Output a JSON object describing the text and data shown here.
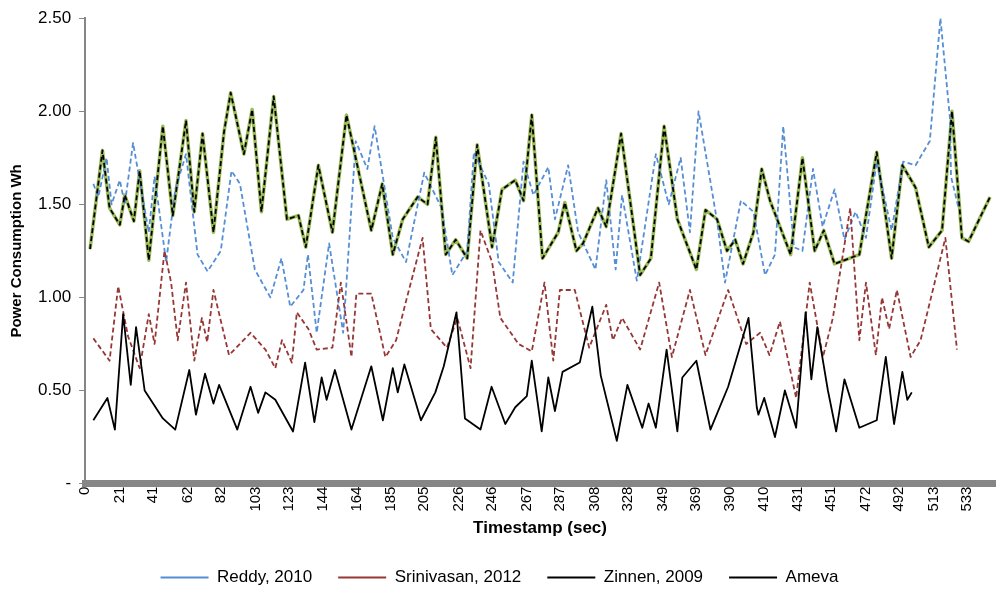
{
  "chart_data": {
    "type": "line",
    "xlabel": "Timestamp (sec)",
    "ylabel": "Power Consumption Wh",
    "xlim": [
      0,
      550
    ],
    "xticks": [
      0,
      21,
      41,
      62,
      82,
      103,
      123,
      144,
      164,
      185,
      205,
      226,
      246,
      267,
      287,
      308,
      328,
      349,
      369,
      390,
      410,
      431,
      451,
      472,
      492,
      513,
      533
    ],
    "ylim": [
      0,
      2.5
    ],
    "yticks": [
      {
        "value": 0,
        "label": "-"
      },
      {
        "value": 0.5,
        "label": "0.50"
      },
      {
        "value": 1,
        "label": "1.00"
      },
      {
        "value": 1.5,
        "label": "1.50"
      },
      {
        "value": 2,
        "label": "2.00"
      },
      {
        "value": 2.5,
        "label": "2.50"
      }
    ],
    "grid": false,
    "legend": "bottom",
    "marker": "none",
    "series": [
      {
        "color": "#9bbb59",
        "line_style": "solid",
        "x": [
          3,
          10.5,
          14.8,
          21,
          24,
          29.5,
          33,
          38.5,
          47,
          53,
          61,
          66,
          71,
          77.6,
          84,
          88,
          96,
          101,
          106.6,
          114,
          122,
          129,
          133.4,
          141,
          149.5,
          158,
          173,
          179.6,
          186,
          192,
          201,
          207,
          212,
          218,
          224,
          231,
          237,
          246,
          252,
          260,
          265,
          270,
          276.5,
          286,
          290,
          297,
          301,
          310,
          315,
          324,
          335.5,
          342,
          350,
          358,
          369.5,
          375,
          382,
          388,
          393,
          397.7,
          404,
          409,
          414,
          426.5,
          433.6,
          441,
          446.5,
          453,
          462,
          468,
          478.5,
          487.5,
          494,
          502,
          510,
          518,
          524,
          530,
          534,
          547
        ],
        "values": [
          1.26,
          1.79,
          1.48,
          1.39,
          1.55,
          1.41,
          1.68,
          1.2,
          1.92,
          1.44,
          1.95,
          1.46,
          1.88,
          1.35,
          1.89,
          2.1,
          1.77,
          2.01,
          1.46,
          2.08,
          1.42,
          1.44,
          1.27,
          1.71,
          1.35,
          1.98,
          1.36,
          1.61,
          1.23,
          1.42,
          1.54,
          1.5,
          1.86,
          1.23,
          1.31,
          1.21,
          1.82,
          1.27,
          1.58,
          1.63,
          1.52,
          1.98,
          1.21,
          1.35,
          1.51,
          1.25,
          1.29,
          1.48,
          1.38,
          1.88,
          1.12,
          1.21,
          1.92,
          1.42,
          1.15,
          1.47,
          1.42,
          1.25,
          1.31,
          1.18,
          1.35,
          1.69,
          1.52,
          1.23,
          1.75,
          1.25,
          1.36,
          1.18,
          1.21,
          1.23,
          1.78,
          1.21,
          1.71,
          1.59,
          1.27,
          1.36,
          2.0,
          1.32,
          1.3,
          1.54
        ]
      },
      {
        "name": "Reddy, 2010",
        "color": "#558ed5",
        "line_style": "dashed",
        "x": [
          5,
          8,
          13,
          16,
          21,
          24,
          29,
          38.5,
          42,
          49,
          54.5,
          61,
          68,
          74,
          82,
          88.5,
          93.6,
          102.6,
          112,
          118.7,
          124,
          132,
          134.7,
          140,
          147.5,
          156,
          163.6,
          170.6,
          175,
          186,
          194,
          205,
          215.5,
          222,
          231,
          235,
          244,
          250,
          258.5,
          265,
          271,
          280,
          284,
          292,
          298,
          308.5,
          315,
          320.7,
          324.6,
          333.5,
          345,
          352.8,
          360,
          365.6,
          370.8,
          382,
          386.8,
          396.4,
          404,
          411,
          417,
          422,
          428.5,
          433.6,
          440,
          445.8,
          453,
          459,
          465.7,
          472,
          478.5,
          487.5,
          494.5,
          502,
          510.6,
          517,
          522.8,
          523.4,
          528
        ],
        "values": [
          1.61,
          1.54,
          1.75,
          1.5,
          1.63,
          1.5,
          1.83,
          1.35,
          1.65,
          1.19,
          1.58,
          1.77,
          1.23,
          1.14,
          1.25,
          1.68,
          1.61,
          1.15,
          1.0,
          1.21,
          0.95,
          1.04,
          1.23,
          0.81,
          1.29,
          0.81,
          1.84,
          1.69,
          1.92,
          1.32,
          1.19,
          1.67,
          1.48,
          1.12,
          1.25,
          1.78,
          1.61,
          1.19,
          1.08,
          1.73,
          1.55,
          1.7,
          1.42,
          1.71,
          1.35,
          1.15,
          1.63,
          1.15,
          1.55,
          1.09,
          1.77,
          1.5,
          1.75,
          1.35,
          2.0,
          1.41,
          1.08,
          1.52,
          1.46,
          1.12,
          1.23,
          1.92,
          1.27,
          1.25,
          1.69,
          1.38,
          1.58,
          1.31,
          1.46,
          1.32,
          1.73,
          1.36,
          1.73,
          1.71,
          1.84,
          2.5,
          1.96,
          1.65,
          1.48
        ]
      },
      {
        "name": "Srinivasan, 2012",
        "color": "#953735",
        "line_style": "dashed",
        "x": [
          5,
          14.8,
          20,
          26,
          33,
          38.5,
          42,
          48,
          52,
          56,
          61,
          66,
          70.6,
          73.8,
          77.6,
          87,
          100,
          109,
          115,
          119,
          125,
          128,
          135,
          140,
          149.5,
          154.6,
          161,
          164,
          173,
          181.5,
          188,
          194,
          204,
          209,
          218.7,
          225,
          233,
          239,
          246,
          251,
          262,
          270,
          277.7,
          283,
          287,
          296,
          304.7,
          315,
          319,
          324.6,
          335.5,
          347,
          354.7,
          365.6,
          375,
          388.7,
          399.6,
          408,
          413.7,
          420,
          429.8,
          438,
          446,
          452,
          462.5,
          468,
          472,
          478,
          481.7,
          486,
          490.7,
          499,
          505,
          513,
          520,
          527
        ],
        "values": [
          0.78,
          0.66,
          1.06,
          0.79,
          0.62,
          0.91,
          0.75,
          1.25,
          1.08,
          0.77,
          1.08,
          0.66,
          0.89,
          0.76,
          1.04,
          0.69,
          0.81,
          0.72,
          0.62,
          0.77,
          0.65,
          0.92,
          0.83,
          0.72,
          0.73,
          1.08,
          0.68,
          1.02,
          1.02,
          0.68,
          0.77,
          0.98,
          1.32,
          0.83,
          0.73,
          0.89,
          0.62,
          1.36,
          1.19,
          0.89,
          0.75,
          0.71,
          1.08,
          0.66,
          1.04,
          1.04,
          0.73,
          0.96,
          0.77,
          0.89,
          0.72,
          1.08,
          0.68,
          1.04,
          0.69,
          1.04,
          0.75,
          0.81,
          0.69,
          0.87,
          0.46,
          1.08,
          0.68,
          0.89,
          1.48,
          0.77,
          1.08,
          0.69,
          1.0,
          0.83,
          1.04,
          0.68,
          0.77,
          1.06,
          1.32,
          0.72
        ]
      },
      {
        "name": "Zinnen, 2009",
        "color": "#000000",
        "line_style": "dashed",
        "x": [
          3,
          10.5,
          14.8,
          21,
          24,
          29.5,
          33,
          38.5,
          47,
          53,
          61,
          66,
          71,
          77.6,
          84,
          88,
          96,
          101,
          106.6,
          114,
          122,
          129,
          133.4,
          141,
          149.5,
          158,
          173,
          179.6,
          186,
          192,
          201,
          207,
          212,
          218,
          224,
          231,
          237,
          246,
          252,
          260,
          265,
          270,
          276.5,
          286,
          290,
          297,
          301,
          310,
          315,
          324,
          335.5,
          342,
          350,
          358,
          369.5,
          375,
          382,
          388,
          393,
          397.7,
          404,
          409,
          414,
          426.5,
          433.6,
          441,
          446.5,
          453,
          462,
          468,
          478.5,
          487.5,
          494,
          502,
          510,
          518,
          524,
          530,
          534,
          547
        ],
        "values": [
          1.26,
          1.79,
          1.48,
          1.39,
          1.55,
          1.41,
          1.68,
          1.2,
          1.92,
          1.44,
          1.95,
          1.46,
          1.88,
          1.35,
          1.89,
          2.1,
          1.77,
          2.01,
          1.46,
          2.08,
          1.42,
          1.44,
          1.27,
          1.71,
          1.35,
          1.98,
          1.36,
          1.61,
          1.23,
          1.42,
          1.54,
          1.5,
          1.86,
          1.23,
          1.31,
          1.21,
          1.82,
          1.27,
          1.58,
          1.63,
          1.52,
          1.98,
          1.21,
          1.35,
          1.51,
          1.25,
          1.29,
          1.48,
          1.38,
          1.88,
          1.12,
          1.21,
          1.92,
          1.42,
          1.15,
          1.47,
          1.42,
          1.25,
          1.31,
          1.18,
          1.35,
          1.69,
          1.52,
          1.23,
          1.75,
          1.25,
          1.36,
          1.18,
          1.21,
          1.23,
          1.78,
          1.21,
          1.71,
          1.59,
          1.27,
          1.36,
          2.0,
          1.32,
          1.3,
          1.54
        ]
      },
      {
        "name": "Ameva",
        "color": "#000000",
        "line_style": "solid",
        "x": [
          5,
          13.5,
          18,
          23,
          27.6,
          30.8,
          36,
          47,
          54.5,
          63,
          67,
          72.5,
          77.6,
          81,
          92,
          100,
          104.6,
          109,
          115,
          125.7,
          133,
          138.6,
          143,
          146,
          151,
          161,
          173,
          180,
          186,
          189,
          193,
          203,
          211.7,
          216.8,
          224.5,
          229.6,
          239,
          245.7,
          254,
          260,
          267,
          270,
          276,
          280,
          284,
          288.6,
          299,
          306.6,
          311.7,
          321.4,
          327.8,
          336.8,
          340.6,
          345,
          351.5,
          358,
          361,
          369.5,
          378,
          388.7,
          401,
          406,
          407,
          410.5,
          417,
          423,
          429.8,
          435.5,
          439,
          442.6,
          449,
          454,
          459,
          468,
          478.5,
          484,
          489,
          494,
          497,
          499.7
        ],
        "values": [
          0.34,
          0.46,
          0.29,
          0.91,
          0.53,
          0.84,
          0.5,
          0.35,
          0.29,
          0.61,
          0.37,
          0.59,
          0.43,
          0.53,
          0.29,
          0.52,
          0.38,
          0.49,
          0.45,
          0.28,
          0.65,
          0.33,
          0.57,
          0.45,
          0.61,
          0.29,
          0.63,
          0.34,
          0.62,
          0.49,
          0.64,
          0.34,
          0.49,
          0.63,
          0.92,
          0.35,
          0.29,
          0.52,
          0.32,
          0.41,
          0.47,
          0.66,
          0.28,
          0.57,
          0.39,
          0.6,
          0.65,
          0.95,
          0.58,
          0.23,
          0.53,
          0.3,
          0.43,
          0.3,
          0.72,
          0.28,
          0.57,
          0.66,
          0.29,
          0.52,
          0.89,
          0.41,
          0.37,
          0.46,
          0.25,
          0.5,
          0.3,
          0.92,
          0.56,
          0.84,
          0.5,
          0.28,
          0.56,
          0.3,
          0.34,
          0.68,
          0.32,
          0.6,
          0.45,
          0.49
        ]
      }
    ]
  }
}
